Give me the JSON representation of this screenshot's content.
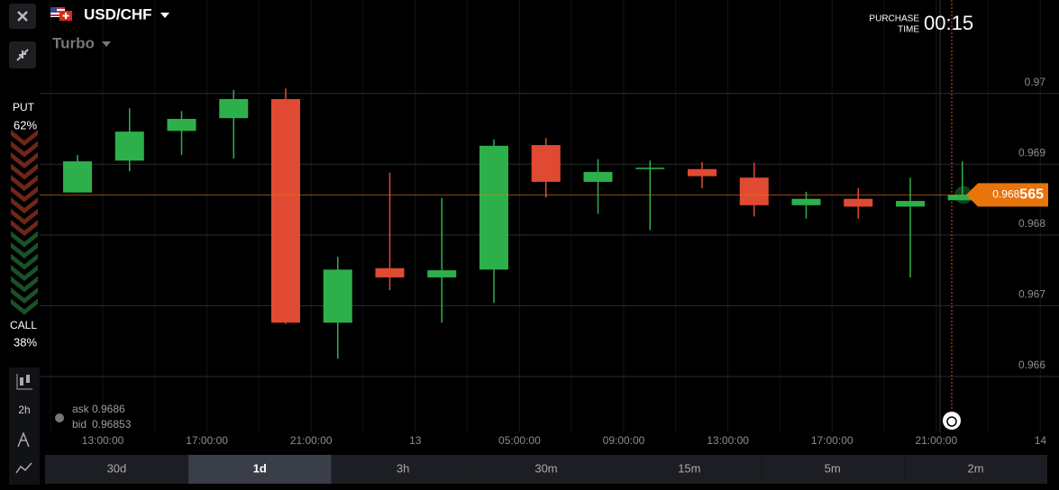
{
  "header": {
    "pair": "USD/CHF",
    "mode": "Turbo",
    "purchase_label": [
      "PURCHASE",
      "TIME"
    ],
    "purchase_time": "00:15"
  },
  "sentiment": {
    "put_label": "PUT",
    "put_pct": "62%",
    "call_label": "CALL",
    "call_pct": "38%"
  },
  "quote": {
    "ask_label": "ask",
    "ask": "0.9686",
    "bid_label": "bid",
    "bid": "0.96853"
  },
  "toolbar": {
    "interval": "2h"
  },
  "timeframes": [
    "30d",
    "1d",
    "3h",
    "30m",
    "15m",
    "5m",
    "2m"
  ],
  "chart_data": {
    "type": "candlestick",
    "up_color": "#2db04b",
    "down_color": "#e04a33",
    "open": [
      0.9686,
      0.96905,
      0.96947,
      0.96965,
      0.96992,
      0.96676,
      0.96753,
      0.9674,
      0.96751,
      0.96927,
      0.96875,
      0.96893,
      0.96893,
      0.96881,
      0.96842,
      0.96851,
      0.9684,
      0.96849
    ],
    "high": [
      0.96913,
      0.96979,
      0.96975,
      0.97005,
      0.97007,
      0.96769,
      0.96888,
      0.96852,
      0.96935,
      0.96937,
      0.96907,
      0.96905,
      0.96903,
      0.96902,
      0.96861,
      0.96866,
      0.96881,
      0.96904
    ],
    "low": [
      0.9686,
      0.9689,
      0.96913,
      0.96908,
      0.96674,
      0.96625,
      0.96722,
      0.96676,
      0.96704,
      0.96853,
      0.9683,
      0.96807,
      0.96866,
      0.96826,
      0.96823,
      0.96823,
      0.9674,
      0.96849
    ],
    "close": [
      0.96904,
      0.96946,
      0.96964,
      0.96992,
      0.96676,
      0.96751,
      0.9674,
      0.9675,
      0.96926,
      0.96875,
      0.96889,
      0.96895,
      0.96883,
      0.96842,
      0.96851,
      0.9684,
      0.96848,
      0.968565
    ],
    "x_labels": [
      "13:00:00",
      "17:00:00",
      "21:00:00",
      "13",
      "05:00:00",
      "09:00:00",
      "13:00:00",
      "17:00:00",
      "21:00:00",
      "14"
    ],
    "ylim": [
      0.96521,
      0.97132
    ],
    "yticks": [
      0.97,
      0.969,
      0.968,
      0.967,
      0.966
    ],
    "current_price": 0.968565,
    "price_color": "#e8740c"
  }
}
